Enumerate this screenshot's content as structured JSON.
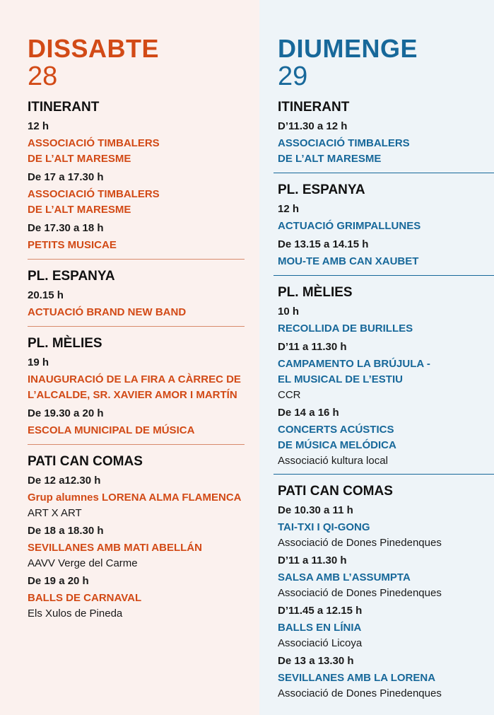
{
  "left": {
    "day": "DISSABTE",
    "num": "28",
    "sections": [
      {
        "title": "ITINERANT",
        "events": [
          {
            "time": "12 h",
            "lines": [
              "ASSOCIACIÓ TIMBALERS",
              "DE L’ALT MARESME"
            ],
            "org": ""
          },
          {
            "time": "De 17 a 17.30 h",
            "lines": [
              "ASSOCIACIÓ TIMBALERS",
              "DE L’ALT MARESME"
            ],
            "org": ""
          },
          {
            "time": "De 17.30 a 18 h",
            "lines": [
              "PETITS MUSICAE"
            ],
            "org": ""
          }
        ]
      },
      {
        "title": "PL. ESPANYA",
        "events": [
          {
            "time": "20.15 h",
            "lines": [
              "ACTUACIÓ BRAND NEW BAND"
            ],
            "org": ""
          }
        ]
      },
      {
        "title": "PL. MÈLIES",
        "events": [
          {
            "time": "19 h",
            "lines": [
              "INAUGURACIÓ DE LA FIRA A CÀRREC DE",
              "L’ALCALDE, SR. XAVIER AMOR I MARTÍN"
            ],
            "org": ""
          },
          {
            "time": "De 19.30 a 20 h",
            "lines": [
              "ESCOLA MUNICIPAL DE MÚSICA"
            ],
            "org": ""
          }
        ]
      },
      {
        "title": "PATI CAN COMAS",
        "events": [
          {
            "time": "De 12 a12.30 h",
            "lines": [
              "Grup alumnes LORENA ALMA FLAMENCA"
            ],
            "org": "ART X ART"
          },
          {
            "time": "De 18 a 18.30 h",
            "lines": [
              "SEVILLANES AMB MATI ABELLÁN"
            ],
            "org": "AAVV Verge del Carme"
          },
          {
            "time": "De 19 a 20 h",
            "lines": [
              "BALLS DE CARNAVAL"
            ],
            "org": "Els Xulos de Pineda"
          }
        ]
      }
    ]
  },
  "right": {
    "day": "DIUMENGE",
    "num": "29",
    "sections": [
      {
        "title": "ITINERANT",
        "events": [
          {
            "time": "D’11.30 a 12 h",
            "lines": [
              "ASSOCIACIÓ TIMBALERS",
              "DE L’ALT MARESME"
            ],
            "org": ""
          }
        ]
      },
      {
        "title": "PL. ESPANYA",
        "events": [
          {
            "time": "12 h",
            "lines": [
              "ACTUACIÓ GRIMPALLUNES"
            ],
            "org": ""
          },
          {
            "time": "De 13.15 a 14.15 h",
            "lines": [
              "MOU-TE AMB CAN XAUBET"
            ],
            "org": ""
          }
        ]
      },
      {
        "title": "PL. MÈLIES",
        "events": [
          {
            "time": "10 h",
            "lines": [
              "RECOLLIDA DE BURILLES"
            ],
            "org": ""
          },
          {
            "time": "D’11 a 11.30 h",
            "lines": [
              "CAMPAMENTO LA BRÚJULA -",
              "EL MUSICAL DE L’ESTIU"
            ],
            "org": "CCR"
          },
          {
            "time": "De 14 a 16 h",
            "lines": [
              "CONCERTS ACÚSTICS",
              "DE MÚSICA MELÓDICA"
            ],
            "org": "Associació kultura local"
          }
        ]
      },
      {
        "title": "PATI CAN COMAS",
        "events": [
          {
            "time": "De 10.30 a 11 h",
            "lines": [
              "TAI-TXI I QI-GONG"
            ],
            "org": "Associació de Dones Pinedenques"
          },
          {
            "time": "D’11 a 11.30 h",
            "lines": [
              "SALSA AMB L’ASSUMPTA"
            ],
            "org": "Associació de Dones Pinedenques"
          },
          {
            "time": "D’11.45 a 12.15 h",
            "lines": [
              "BALLS EN LÍNIA"
            ],
            "org": "Associació Licoya"
          },
          {
            "time": "De 13 a 13.30 h",
            "lines": [
              "SEVILLANES AMB LA LORENA"
            ],
            "org": "Associació de Dones Pinedenques"
          }
        ]
      }
    ]
  }
}
